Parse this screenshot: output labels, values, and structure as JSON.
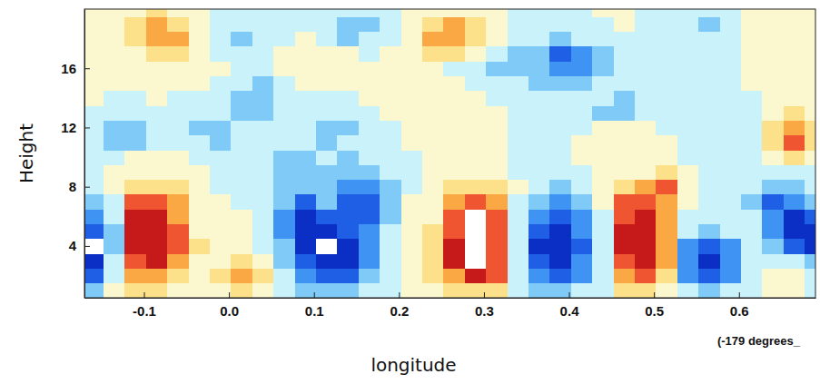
{
  "chart_data": {
    "type": "heatmap",
    "x_label": "longitude",
    "y_label": "Height",
    "annotation": "(-179 degrees_",
    "xlim": [
      -0.17,
      0.69
    ],
    "ylim": [
      0.5,
      20
    ],
    "xticks": [
      {
        "value": -0.1,
        "label": "-0.1"
      },
      {
        "value": 0,
        "label": "0.0"
      },
      {
        "value": 0.1,
        "label": "0.1"
      },
      {
        "value": 0.2,
        "label": "0.2"
      },
      {
        "value": 0.3,
        "label": "0.3"
      },
      {
        "value": 0.4,
        "label": "0.4"
      },
      {
        "value": 0.5,
        "label": "0.5"
      },
      {
        "value": 0.6,
        "label": "0.6"
      }
    ],
    "yticks": [
      4,
      8,
      12,
      16
    ],
    "color_levels": [
      -5,
      -4,
      -3,
      -2,
      -1,
      0,
      1,
      2,
      3,
      4,
      5
    ],
    "colors": [
      "#ffffff",
      "#0b2fc4",
      "#1f5fe6",
      "#3f93f2",
      "#7fcaf6",
      "#c9f2fb",
      "#fbf8cf",
      "#fce08a",
      "#f9a844",
      "#ee5530",
      "#c5191a",
      "#ffffff"
    ],
    "x": [
      -0.16,
      -0.135,
      -0.11,
      -0.085,
      -0.06,
      -0.035,
      -0.01,
      0.015,
      0.04,
      0.065,
      0.09,
      0.115,
      0.14,
      0.165,
      0.19,
      0.215,
      0.24,
      0.265,
      0.29,
      0.315,
      0.34,
      0.365,
      0.39,
      0.415,
      0.44,
      0.465,
      0.49,
      0.515,
      0.54,
      0.565,
      0.59,
      0.615,
      0.64,
      0.665,
      0.69
    ],
    "y": [
      1,
      2,
      3,
      4,
      5,
      6,
      7,
      8,
      9,
      10,
      11,
      12,
      13,
      14,
      15,
      16,
      17,
      18,
      19,
      20
    ],
    "z": [
      [
        -1.5,
        0.5,
        1,
        1,
        0.5,
        0.3,
        0.8,
        1.2,
        0.3,
        -0.5,
        -1.5,
        -2,
        -1.5,
        -0.8,
        -0.3,
        0.3,
        0.5,
        1,
        1.8,
        1.2,
        -0.3,
        -1.2,
        -1.5,
        -1,
        -0.3,
        1,
        1.5,
        0.5,
        -0.8,
        -1.2,
        -0.8,
        -0.2,
        0.3,
        0.3,
        -0.5
      ],
      [
        -3.5,
        -0.5,
        2,
        2.5,
        1.5,
        0.5,
        1.5,
        2.5,
        1,
        -1,
        -3,
        -4,
        -3.5,
        -2,
        -0.5,
        0.5,
        1,
        2.5,
        4.5,
        3,
        -0.5,
        -3,
        -3.5,
        -2.5,
        -0.5,
        2.5,
        3.5,
        1.5,
        -2.5,
        -3.5,
        -2.5,
        -0.8,
        0.2,
        0.3,
        -1
      ],
      [
        -5,
        -1,
        3.5,
        4,
        2.5,
        0.8,
        0.8,
        1.5,
        0.5,
        -1.5,
        -4,
        -5,
        -4.5,
        -2.5,
        -0.8,
        0.3,
        1.5,
        4,
        5.5,
        3.5,
        -0.8,
        -4,
        -4.6,
        -3,
        -0.5,
        3.5,
        4.5,
        2,
        -3,
        -4.3,
        -3,
        -1,
        -0.3,
        -1,
        -2
      ],
      [
        -5.5,
        -1.5,
        4.3,
        4.5,
        3,
        1,
        0.5,
        0.3,
        -0.5,
        -2,
        -4.5,
        -5.5,
        -4.5,
        -2.5,
        -0.8,
        0.3,
        1.5,
        4.2,
        5.5,
        3.5,
        -1,
        -4.2,
        -4.8,
        -3.2,
        -0.5,
        4,
        4.6,
        2,
        -2.5,
        -4,
        -2.5,
        -1,
        -1.5,
        -3.5,
        -4.5
      ],
      [
        -4,
        -1.2,
        4.5,
        4.6,
        3,
        0.8,
        0.3,
        0,
        -0.8,
        -2.5,
        -4.5,
        -4.8,
        -3.5,
        -2.5,
        -1,
        0.2,
        1.2,
        3.8,
        5.5,
        3.2,
        -1,
        -4,
        -4.5,
        -3,
        -0.5,
        4,
        4.5,
        2,
        -0.8,
        -1.5,
        -1,
        -1,
        -2.5,
        -4.5,
        -5
      ],
      [
        -3,
        -0.8,
        4,
        4,
        2.5,
        0.5,
        0.3,
        0,
        -0.8,
        -2.5,
        -4.2,
        -3.5,
        -3.8,
        -3.5,
        -1.2,
        0,
        0.8,
        3.5,
        5,
        3,
        -0.5,
        -3,
        -4,
        -2.5,
        -0.3,
        3.8,
        4.3,
        2,
        -0.3,
        -0.5,
        -0.5,
        -1,
        -3,
        -4.5,
        -4
      ],
      [
        -2,
        -0.5,
        3,
        3,
        2,
        0.3,
        0,
        -0.3,
        -0.8,
        -2,
        -3.5,
        -2,
        -3.5,
        -4,
        -1.5,
        0,
        0.5,
        2.5,
        3.5,
        2.5,
        -0.3,
        -2,
        -2.5,
        -1.5,
        0,
        3,
        3.5,
        2.5,
        0.3,
        -0.3,
        -0.3,
        -1.2,
        -3.2,
        -3,
        -2
      ],
      [
        -1,
        0,
        1.5,
        1.8,
        1,
        0.2,
        -0.2,
        -0.5,
        -0.8,
        -1.2,
        -1.8,
        -1.2,
        -2.5,
        -3,
        -1.5,
        -0.2,
        0.3,
        1.2,
        1.5,
        1.2,
        0,
        -0.8,
        -1.2,
        -0.8,
        0,
        1.5,
        2.5,
        3,
        0.5,
        -0.3,
        -0.3,
        -1,
        -1.5,
        -1.2,
        -0.8
      ],
      [
        -0.5,
        0.2,
        0.5,
        0.8,
        0.5,
        0,
        -0.3,
        -0.5,
        -0.8,
        -1.2,
        -1.5,
        -1.2,
        -1.8,
        -1.5,
        -1,
        -0.3,
        0.2,
        0.5,
        0.5,
        0.3,
        -0.2,
        -0.5,
        -0.5,
        -0.3,
        0.2,
        0.5,
        0.8,
        1,
        0.3,
        -0.2,
        -0.5,
        -0.8,
        -0.8,
        -0.5,
        -0.3
      ],
      [
        -0.8,
        -0.5,
        0.3,
        0.3,
        0.2,
        -0.3,
        -0.8,
        -1,
        -0.8,
        -1.2,
        -1.2,
        -1,
        -1.2,
        -1,
        -0.8,
        -0.3,
        0.3,
        0.5,
        0.5,
        0.3,
        -0.3,
        -0.5,
        -0.3,
        0,
        0.3,
        0.3,
        0.2,
        0,
        -0.3,
        -0.5,
        -0.5,
        -0.3,
        0.2,
        1,
        0.8
      ],
      [
        -0.8,
        -1.2,
        -1.3,
        -0.5,
        -0.3,
        -0.8,
        -1.2,
        -0.8,
        -0.5,
        -0.8,
        -1,
        -1.3,
        -1,
        -0.5,
        -0.3,
        0,
        0.3,
        0.5,
        0.3,
        0,
        -0.3,
        -0.5,
        -0.3,
        0,
        0.3,
        0.3,
        0.2,
        0,
        -0.3,
        -0.5,
        -0.5,
        -0.2,
        1,
        3.5,
        1.5
      ],
      [
        -0.5,
        -1.3,
        -1.5,
        -0.8,
        -0.3,
        -1.2,
        -1.5,
        -0.8,
        -0.3,
        -0.5,
        -0.8,
        -1.5,
        -1.3,
        -0.5,
        -0.3,
        0,
        0.3,
        0.3,
        0.3,
        0,
        -0.3,
        -0.5,
        -0.3,
        -0.2,
        0,
        0.2,
        0,
        -0.2,
        -0.3,
        -0.5,
        -0.5,
        -0.2,
        1.5,
        2.2,
        1.2
      ],
      [
        -0.3,
        -0.8,
        -1,
        -0.5,
        -0.3,
        -0.8,
        -0.5,
        -1.2,
        -1.5,
        -0.5,
        -0.3,
        -0.8,
        -0.8,
        -0.3,
        0,
        0.2,
        0.3,
        0.3,
        0.2,
        0,
        -0.3,
        -0.5,
        -0.5,
        -0.5,
        -1.2,
        -1.3,
        -0.8,
        -0.5,
        -0.3,
        -0.5,
        -0.5,
        -0.2,
        0.8,
        1.5,
        0.8
      ],
      [
        0,
        -0.3,
        -0.3,
        0,
        -0.2,
        -0.3,
        -0.3,
        -1.5,
        -1.8,
        -0.5,
        -0.2,
        -0.3,
        -0.3,
        0,
        0.2,
        0.3,
        0.3,
        0.2,
        0,
        -0.2,
        -0.5,
        -0.8,
        -0.8,
        -0.5,
        -1,
        -1.2,
        -0.5,
        -0.3,
        -0.3,
        -0.5,
        -0.5,
        -0.3,
        0.2,
        0.5,
        0.3
      ],
      [
        0.2,
        0.3,
        0.3,
        0.3,
        0.2,
        0,
        -0.3,
        -1,
        -1.2,
        -0.3,
        0,
        0.2,
        0.3,
        0.3,
        0.3,
        0.3,
        0.2,
        0,
        -0.3,
        -0.5,
        -0.8,
        -1.2,
        -1.5,
        -1.2,
        -0.5,
        -0.3,
        -0.3,
        -0.3,
        -0.3,
        -0.5,
        -0.3,
        0,
        0.2,
        0.3,
        0.2
      ],
      [
        0.3,
        0.3,
        0.3,
        0.5,
        0.5,
        0.3,
        0,
        -0.3,
        -0.3,
        0,
        0.2,
        0.3,
        0.3,
        0.3,
        0.3,
        0.2,
        0,
        -0.3,
        -0.8,
        -1.3,
        -1.5,
        -2,
        -3,
        -2.5,
        -1.2,
        -0.5,
        -0.3,
        -0.3,
        -0.3,
        -0.3,
        -0.2,
        0,
        0.2,
        0.2,
        0
      ],
      [
        0.3,
        0.5,
        0.8,
        1.5,
        1.5,
        0.5,
        -0.2,
        -0.5,
        -0.3,
        0,
        0.2,
        0.3,
        0,
        -0.3,
        0,
        0.3,
        1,
        1.5,
        0.8,
        -0.3,
        -1.2,
        -1.8,
        -3.2,
        -2.5,
        -1.2,
        -0.5,
        -0.3,
        -0.3,
        -0.3,
        -0.3,
        -0.2,
        0,
        0.2,
        0.3,
        0.2
      ],
      [
        0.2,
        0.8,
        1.8,
        2.5,
        2,
        0.5,
        -0.5,
        -1.2,
        -0.8,
        -0.2,
        0,
        -0.5,
        -1.2,
        -1,
        -0.3,
        0.3,
        2,
        2.8,
        1.5,
        0,
        -0.8,
        -1,
        -1.2,
        -0.8,
        -0.5,
        -0.3,
        -0.3,
        -0.5,
        -0.8,
        -0.5,
        -0.3,
        0,
        0.3,
        0.5,
        0.3
      ],
      [
        0.2,
        0.5,
        1.5,
        2,
        1.5,
        0.5,
        -0.3,
        -0.8,
        -0.5,
        -0.2,
        -0.3,
        -1,
        -1.5,
        -1.2,
        -0.3,
        0.3,
        1.5,
        2,
        1.2,
        0.2,
        -0.3,
        -0.5,
        -0.5,
        -0.3,
        -0.2,
        0,
        -0.2,
        -0.5,
        -1,
        -1.2,
        -0.5,
        0,
        0.3,
        0.5,
        0.3
      ],
      [
        0.2,
        0.3,
        0.8,
        1,
        0.8,
        0.3,
        -0.2,
        -0.3,
        -0.3,
        -0.2,
        -0.3,
        -0.5,
        -0.8,
        -0.5,
        -0.2,
        0.2,
        0.5,
        0.8,
        0.5,
        0.2,
        -0.2,
        -0.3,
        -0.3,
        -0.2,
        0,
        0,
        -0.2,
        -0.3,
        -0.5,
        -0.5,
        -0.3,
        0,
        0.2,
        0.3,
        0.2
      ]
    ]
  }
}
